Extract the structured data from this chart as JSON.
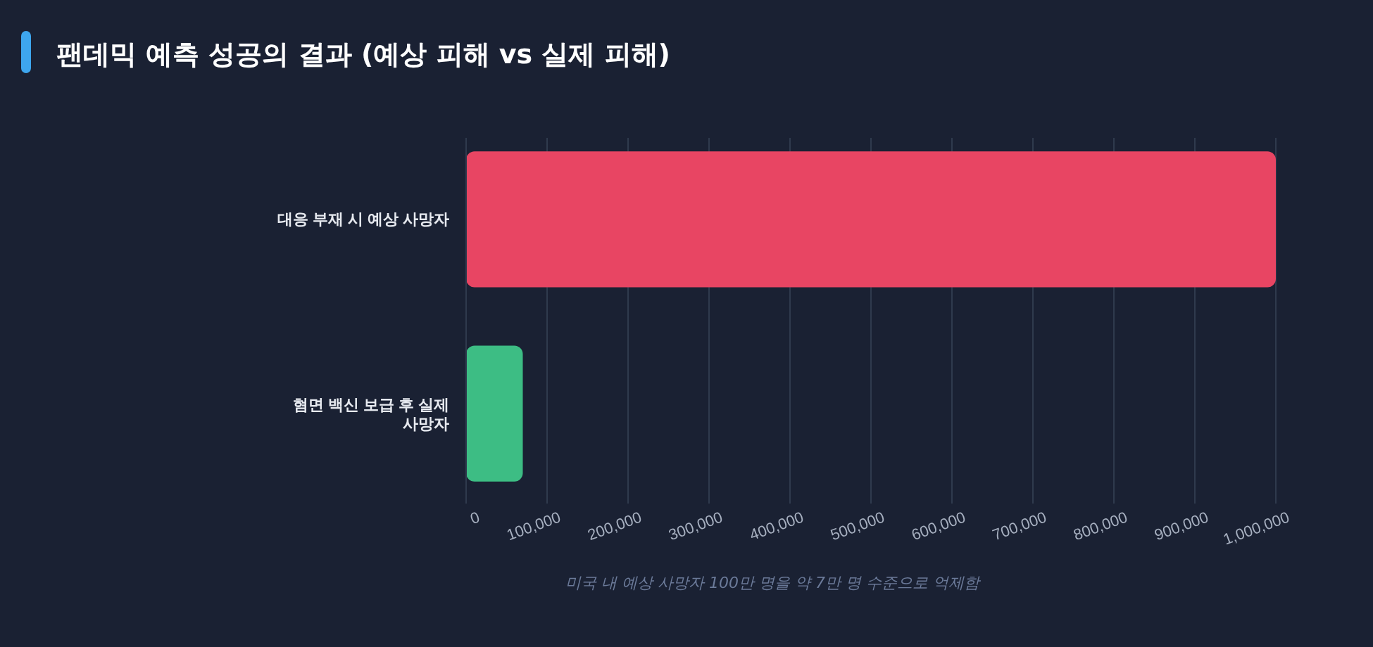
{
  "chart_data": {
    "type": "bar",
    "orientation": "horizontal",
    "title": "팬데믹 예측 성공의 결과 (예상 피해 vs 실제 피해)",
    "categories": [
      "대응 부재 시 예상 사망자",
      "혐면 백신 보급 후 실제 사망자"
    ],
    "values": [
      1000000,
      70000
    ],
    "colors": [
      "#e84563",
      "#3dbd84"
    ],
    "xlim": [
      0,
      1000000
    ],
    "xticks": [
      {
        "value": 0,
        "label": "0"
      },
      {
        "value": 100000,
        "label": "100,000"
      },
      {
        "value": 200000,
        "label": "200,000"
      },
      {
        "value": 300000,
        "label": "300,000"
      },
      {
        "value": 400000,
        "label": "400,000"
      },
      {
        "value": 500000,
        "label": "500,000"
      },
      {
        "value": 600000,
        "label": "600,000"
      },
      {
        "value": 700000,
        "label": "700,000"
      },
      {
        "value": 800000,
        "label": "800,000"
      },
      {
        "value": 900000,
        "label": "900,000"
      },
      {
        "value": 1000000,
        "label": "1,000,000"
      }
    ],
    "grid": "x",
    "annotations": [
      "미국 내 예상 사망자 100만 명을 약 7만 명 수준으로 억제함"
    ]
  }
}
